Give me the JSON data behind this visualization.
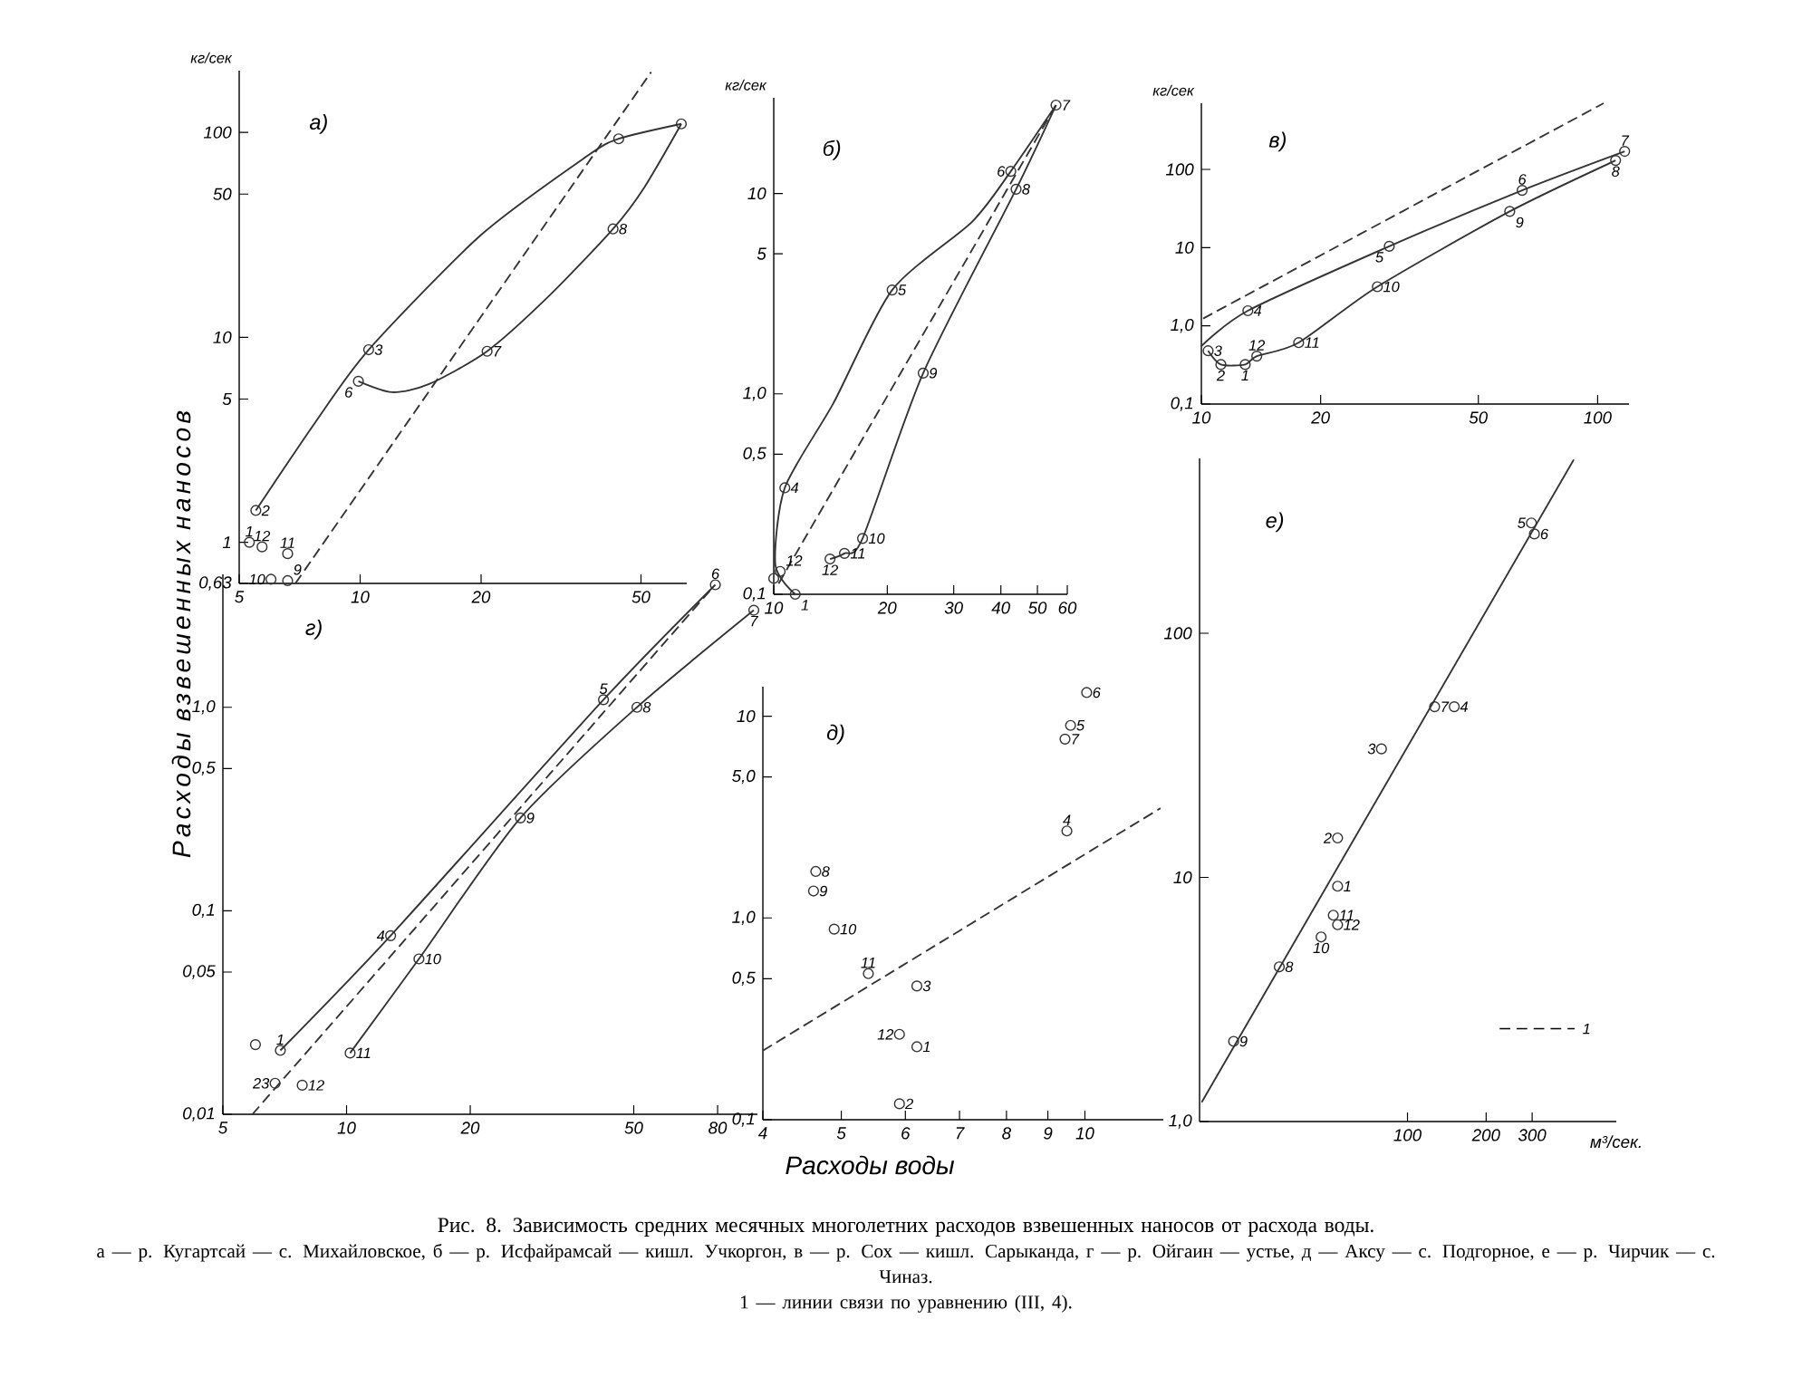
{
  "chart_data": [
    {
      "type": "scatter",
      "title": "а)",
      "ylabel": "кг/сек",
      "log": "xy",
      "marker": "circle",
      "xlim": [
        5,
        65
      ],
      "ylim": [
        0.63,
        200
      ],
      "xticks": [
        5,
        10,
        20,
        50
      ],
      "yticks": [
        {
          "value": 0.63,
          "label": "0,63"
        },
        1,
        5,
        10,
        50,
        100
      ],
      "series": [
        {
          "color": "#333333",
          "x": [
            5.3,
            5.5,
            10.5,
            44,
            63,
            9.9,
            20.7,
            42.6,
            6.6,
            6.0,
            6.6,
            5.7
          ],
          "values": [
            1.0,
            1.43,
            8.7,
            93,
            110,
            6.1,
            8.55,
            33.8,
            0.65,
            0.66,
            0.88,
            0.95
          ]
        },
        {
          "type": "line",
          "marker": "none",
          "color": "#333333",
          "line_style": "solid",
          "x": [
            5.5,
            7.7,
            10.5,
            20,
            36.5,
            44,
            63
          ],
          "values": [
            1.43,
            3.8,
            8.7,
            31.6,
            76,
            93,
            110
          ]
        },
        {
          "type": "line",
          "marker": "none",
          "color": "#333333",
          "line_style": "solid",
          "x": [
            63,
            51,
            42.6,
            29.6,
            20.7,
            14.8,
            12.0,
            9.9
          ],
          "values": [
            110,
            54,
            33.8,
            16,
            8.55,
            5.9,
            5.4,
            6.1
          ]
        },
        {
          "type": "line",
          "marker": "none",
          "color": "#333333",
          "line_style": "dashed",
          "x": [
            6.9,
            53
          ],
          "values": [
            0.63,
            197
          ]
        }
      ],
      "annotations": [
        {
          "text": "1",
          "x": 5.3,
          "y": 1.0
        },
        {
          "text": "2",
          "x": 5.5,
          "y": 1.43
        },
        {
          "text": "3",
          "x": 10.5,
          "y": 8.7
        },
        {
          "text": "6",
          "x": 9.9,
          "y": 6.1
        },
        {
          "text": "7",
          "x": 20.7,
          "y": 8.55
        },
        {
          "text": "8",
          "x": 42.6,
          "y": 33.8
        },
        {
          "text": "9",
          "x": 6.6,
          "y": 0.65
        },
        {
          "text": "10",
          "x": 6.0,
          "y": 0.66
        },
        {
          "text": "11",
          "x": 6.6,
          "y": 0.88
        },
        {
          "text": "12",
          "x": 5.7,
          "y": 0.95
        },
        "Рис. 8. Зависимость средних месячных многолетних расходов взвешенных наносов от расхода воды.",
        "а — р. Кугартсай — с. Михайловское, б — р. Исфайрамсай — кишл. Учкоргон, в — р. Сох — кишл. Сарыканда, г — р. Ойгаин — устье, д — Аксу — с. Подгорное, е — р. Чирчик — с. Чиназ.",
        "1 — линии связи по уравнению (III, 4)."
      ]
    },
    {
      "type": "scatter",
      "title": "б)",
      "ylabel": "кг/сек",
      "log": "xy",
      "marker": "circle",
      "xlim": [
        10,
        60
      ],
      "ylim": [
        0.1,
        30
      ],
      "xticks": [
        10,
        20,
        30,
        40,
        50,
        60
      ],
      "yticks": [
        {
          "value": 0.1,
          "label": "0,1"
        },
        {
          "value": 0.5,
          "label": "0,5"
        },
        {
          "value": 1,
          "label": "1,0"
        },
        5,
        10
      ],
      "series": [
        {
          "color": "#333333",
          "x": [
            11.4,
            10.4,
            10,
            10.7,
            20.6,
            42.5,
            56,
            43.9,
            24.9,
            17.2,
            15.4,
            14.1
          ],
          "values": [
            0.1,
            0.13,
            0.12,
            0.34,
            3.3,
            12.9,
            27.6,
            10.5,
            1.27,
            0.19,
            0.16,
            0.15
          ]
        },
        {
          "type": "line",
          "marker": "none",
          "color": "#333333",
          "line_style": "solid",
          "x": [
            56,
            42.5,
            33.5,
            20.6,
            14.4,
            10.7,
            10.1,
            11.4
          ],
          "values": [
            27.6,
            12.9,
            7.2,
            3.3,
            0.9,
            0.34,
            0.14,
            0.1
          ]
        },
        {
          "type": "line",
          "marker": "none",
          "color": "#333333",
          "line_style": "solid",
          "x": [
            14.1,
            15.4,
            17.2,
            24.9,
            43.9,
            56
          ],
          "values": [
            0.15,
            0.16,
            0.19,
            1.27,
            10.5,
            27.6
          ]
        },
        {
          "type": "line",
          "marker": "none",
          "color": "#333333",
          "line_style": "dashed",
          "x": [
            10.3,
            56
          ],
          "values": [
            0.113,
            27.6
          ]
        }
      ],
      "annotations": [
        {
          "text": "1",
          "x": 11.4,
          "y": 0.1
        },
        {
          "text": "12",
          "x": 10.4,
          "y": 0.13
        },
        {
          "text": "4",
          "x": 10.7,
          "y": 0.34
        },
        {
          "text": "5",
          "x": 20.6,
          "y": 3.3
        },
        {
          "text": "6",
          "x": 42.5,
          "y": 12.9
        },
        {
          "text": "7",
          "x": 56,
          "y": 27.6
        },
        {
          "text": "8",
          "x": 43.9,
          "y": 10.5
        },
        {
          "text": "9",
          "x": 24.9,
          "y": 1.27
        },
        {
          "text": "10",
          "x": 17.2,
          "y": 0.19
        },
        {
          "text": "11",
          "x": 15.4,
          "y": 0.16
        },
        {
          "text": "12",
          "x": 14.1,
          "y": 0.15
        }
      ]
    },
    {
      "type": "scatter",
      "title": "в)",
      "ylabel": "кг/сек",
      "log": "xy",
      "marker": "circle",
      "xlim": [
        10,
        120
      ],
      "ylim": [
        0.1,
        700
      ],
      "xticks": [
        10,
        20,
        50,
        100
      ],
      "yticks": [
        {
          "value": 0.1,
          "label": "0,1"
        },
        {
          "value": 1,
          "label": "1,0"
        },
        10,
        100
      ],
      "series": [
        {
          "color": "#333333",
          "x": [
            12.9,
            11.2,
            10.4,
            13.1,
            29.8,
            64.5,
            117,
            111,
            60,
            27.8,
            17.6,
            13.8
          ],
          "values": [
            0.32,
            0.32,
            0.48,
            1.56,
            10.4,
            54,
            170,
            130,
            29,
            3.16,
            0.61,
            0.41
          ]
        },
        {
          "type": "line",
          "marker": "none",
          "color": "#333333",
          "line_style": "solid",
          "x": [
            10,
            13.1,
            29.8,
            64.5,
            117
          ],
          "values": [
            0.55,
            1.56,
            10.4,
            54,
            170
          ]
        },
        {
          "type": "line",
          "marker": "none",
          "color": "#333333",
          "line_style": "solid",
          "x": [
            10.4,
            11.2,
            12.9,
            13.8,
            17.6,
            27.8,
            60,
            111
          ],
          "values": [
            0.48,
            0.32,
            0.32,
            0.41,
            0.61,
            3.16,
            29,
            130
          ]
        },
        {
          "type": "line",
          "marker": "none",
          "color": "#333333",
          "line_style": "dashed",
          "x": [
            10.1,
            103.5
          ],
          "values": [
            1.24,
            700
          ]
        }
      ],
      "annotations": [
        {
          "text": "1",
          "x": 12.9,
          "y": 0.32
        },
        {
          "text": "2",
          "x": 11.2,
          "y": 0.32
        },
        {
          "text": "3",
          "x": 10.4,
          "y": 0.48
        },
        {
          "text": "4",
          "x": 13.1,
          "y": 1.56
        },
        {
          "text": "5",
          "x": 29.8,
          "y": 10.4
        },
        {
          "text": "6",
          "x": 64.5,
          "y": 54
        },
        {
          "text": "7",
          "x": 117,
          "y": 170
        },
        {
          "text": "8",
          "x": 111,
          "y": 130
        },
        {
          "text": "9",
          "x": 60,
          "y": 29
        },
        {
          "text": "10",
          "x": 27.8,
          "y": 3.16
        },
        {
          "text": "11",
          "x": 17.6,
          "y": 0.61
        },
        {
          "text": "12",
          "x": 13.8,
          "y": 0.41
        }
      ]
    },
    {
      "type": "scatter",
      "title": "г)",
      "ylabel": "Расходы взвешенных наносов",
      "log": "xy",
      "marker": "circle",
      "xlim": [
        5,
        100
      ],
      "ylim": [
        0.01,
        4.5
      ],
      "xticks": [
        5,
        10,
        20,
        50,
        80
      ],
      "yticks": [
        {
          "value": 0.01,
          "label": "0,01"
        },
        {
          "value": 0.05,
          "label": "0,05"
        },
        {
          "value": 0.1,
          "label": "0,1"
        },
        {
          "value": 0.5,
          "label": "0,5"
        },
        {
          "value": 1,
          "label": "1,0"
        }
      ],
      "series": [
        {
          "color": "#333333",
          "x": [
            6.9,
            6.0,
            6.7,
            12.8,
            42.2,
            79,
            98,
            50.9,
            26.5,
            15,
            10.2,
            7.8
          ],
          "values": [
            0.0206,
            0.022,
            0.0142,
            0.0755,
            1.09,
            4.0,
            3.0,
            1.0,
            0.286,
            0.058,
            0.02,
            0.0139
          ]
        },
        {
          "type": "line",
          "marker": "none",
          "color": "#333333",
          "line_style": "solid",
          "x": [
            6.9,
            12.8,
            42.2,
            79
          ],
          "values": [
            0.0206,
            0.0755,
            1.09,
            4.0
          ]
        },
        {
          "type": "line",
          "marker": "none",
          "color": "#333333",
          "line_style": "solid",
          "x": [
            10.2,
            15,
            26.5,
            50.9,
            98
          ],
          "values": [
            0.02,
            0.058,
            0.286,
            1.0,
            3.0
          ]
        },
        {
          "type": "line",
          "marker": "none",
          "color": "#333333",
          "line_style": "dashed",
          "x": [
            5.9,
            77.6
          ],
          "values": [
            0.01,
            3.85
          ]
        }
      ],
      "annotations": [
        {
          "text": "1",
          "x": 6.9,
          "y": 0.0206
        },
        {
          "text": "23",
          "x": 6.7,
          "y": 0.0142
        },
        {
          "text": "4",
          "x": 12.8,
          "y": 0.0755
        },
        {
          "text": "5",
          "x": 42.2,
          "y": 1.09
        },
        {
          "text": "6",
          "x": 79,
          "y": 4.0
        },
        {
          "text": "7",
          "x": 98,
          "y": 3.0
        },
        {
          "text": "8",
          "x": 50.9,
          "y": 1.0
        },
        {
          "text": "9",
          "x": 26.5,
          "y": 0.286
        },
        {
          "text": "10",
          "x": 15,
          "y": 0.058
        },
        {
          "text": "11",
          "x": 10.2,
          "y": 0.02
        },
        {
          "text": "12",
          "x": 7.8,
          "y": 0.0139
        }
      ]
    },
    {
      "type": "scatter",
      "title": "д)",
      "xlabel": "Расходы воды",
      "log": "xy",
      "marker": "circle",
      "xlim": [
        4,
        12.5
      ],
      "ylim": [
        0.1,
        14
      ],
      "xticks": [
        4,
        5,
        6,
        7,
        8,
        9,
        10
      ],
      "yticks": [
        {
          "value": 0.1,
          "label": "0,1"
        },
        {
          "value": 0.5,
          "label": "0,5"
        },
        {
          "value": 1,
          "label": "1,0"
        },
        {
          "value": 5,
          "label": "5,0"
        },
        10
      ],
      "series": [
        {
          "color": "#333333",
          "x": [
            6.2,
            5.9,
            6.2,
            9.5,
            9.6,
            10.05,
            9.45,
            4.65,
            4.62,
            4.9,
            5.4,
            5.9
          ],
          "values": [
            0.23,
            0.12,
            0.46,
            2.7,
            9.0,
            13.1,
            7.7,
            1.7,
            1.36,
            0.88,
            0.53,
            0.265
          ]
        },
        {
          "type": "line",
          "marker": "none",
          "color": "#333333",
          "line_style": "dashed",
          "x": [
            4,
            12.4
          ],
          "values": [
            0.22,
            3.5
          ]
        }
      ],
      "annotations": [
        {
          "text": "1",
          "x": 6.2,
          "y": 0.23
        },
        {
          "text": "2",
          "x": 5.9,
          "y": 0.12
        },
        {
          "text": "3",
          "x": 6.2,
          "y": 0.46
        },
        {
          "text": "4",
          "x": 9.5,
          "y": 2.7
        },
        {
          "text": "5",
          "x": 9.6,
          "y": 9.0
        },
        {
          "text": "6",
          "x": 10.05,
          "y": 13.1
        },
        {
          "text": "7",
          "x": 9.45,
          "y": 7.7
        },
        {
          "text": "8",
          "x": 4.65,
          "y": 1.7
        },
        {
          "text": "9",
          "x": 4.62,
          "y": 1.36
        },
        {
          "text": "10",
          "x": 4.9,
          "y": 0.88
        },
        {
          "text": "11",
          "x": 5.4,
          "y": 0.53
        },
        {
          "text": "12",
          "x": 5.9,
          "y": 0.265
        }
      ]
    },
    {
      "type": "scatter",
      "title": "е)",
      "xlabel": "м³/сек.",
      "log": "xy",
      "marker": "circle",
      "xlim": [
        16,
        630
      ],
      "ylim": [
        1,
        520
      ],
      "xticks": [
        100,
        200,
        300
      ],
      "yticks": [
        {
          "value": 1,
          "label": "1,0"
        },
        10,
        100
      ],
      "series": [
        {
          "color": "#333333",
          "x": [
            54,
            54,
            79.5,
            151,
            298,
            306,
            127,
            32.3,
            21.6,
            46.7,
            52,
            54
          ],
          "values": [
            9.2,
            14.5,
            33.6,
            50,
            283,
            255,
            50,
            4.3,
            2.13,
            5.7,
            7.0,
            6.4
          ]
        },
        {
          "type": "line",
          "marker": "none",
          "color": "#333333",
          "line_style": "solid",
          "x": [
            16.3,
            433
          ],
          "values": [
            1.2,
            514
          ]
        }
      ],
      "annotations": [
        {
          "text": "1",
          "x": 54,
          "y": 9.2
        },
        {
          "text": "2",
          "x": 54,
          "y": 14.5
        },
        {
          "text": "3",
          "x": 79.5,
          "y": 33.6
        },
        {
          "text": "4",
          "x": 151,
          "y": 50
        },
        {
          "text": "5",
          "x": 298,
          "y": 283
        },
        {
          "text": "6",
          "x": 306,
          "y": 255
        },
        {
          "text": "7",
          "x": 127,
          "y": 50
        },
        {
          "text": "8",
          "x": 32.3,
          "y": 4.3
        },
        {
          "text": "9",
          "x": 21.6,
          "y": 2.13
        },
        {
          "text": "10",
          "x": 46.7,
          "y": 5.7
        },
        {
          "text": "11",
          "x": 52,
          "y": 7.0
        },
        {
          "text": "12",
          "x": 54,
          "y": 6.4
        },
        "1"
      ]
    }
  ]
}
